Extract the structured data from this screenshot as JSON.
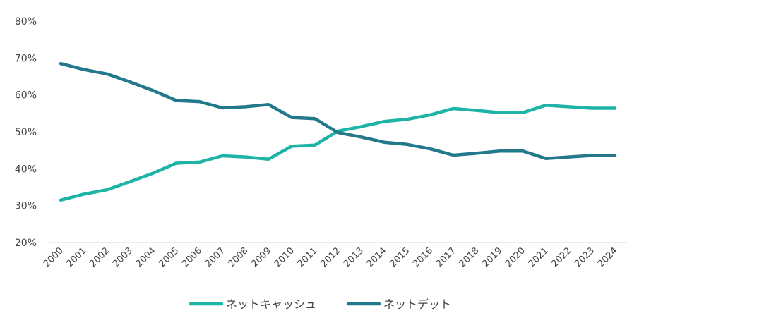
{
  "chart_data": {
    "type": "line",
    "x": [
      "2000",
      "2001",
      "2002",
      "2003",
      "2004",
      "2005",
      "2006",
      "2007",
      "2008",
      "2009",
      "2010",
      "2011",
      "2012",
      "2013",
      "2014",
      "2015",
      "2016",
      "2017",
      "2018",
      "2019",
      "2020",
      "2021",
      "2022",
      "2023",
      "2024"
    ],
    "series": [
      {
        "name": "ネットキャッシュ",
        "color": "#1db3a6",
        "values": [
          31.5,
          33.1,
          34.3,
          36.5,
          38.8,
          41.5,
          41.8,
          43.5,
          43.2,
          42.6,
          46.1,
          46.4,
          50.2,
          51.4,
          52.8,
          53.4,
          54.6,
          56.3,
          55.8,
          55.2,
          55.2,
          57.2,
          56.8,
          56.4,
          56.4
        ]
      },
      {
        "name": "ネットデット",
        "color": "#23788c",
        "values": [
          68.5,
          66.9,
          65.7,
          63.5,
          61.2,
          58.5,
          58.2,
          56.5,
          56.8,
          57.4,
          53.9,
          53.6,
          49.8,
          48.6,
          47.2,
          46.6,
          45.4,
          43.7,
          44.2,
          44.8,
          44.8,
          42.8,
          43.2,
          43.6,
          43.6
        ]
      }
    ],
    "y_ticks": [
      "20%",
      "30%",
      "40%",
      "50%",
      "60%",
      "70%",
      "80%"
    ],
    "ylim": [
      20,
      80
    ],
    "grid": false,
    "legend_position": "bottom-center"
  }
}
